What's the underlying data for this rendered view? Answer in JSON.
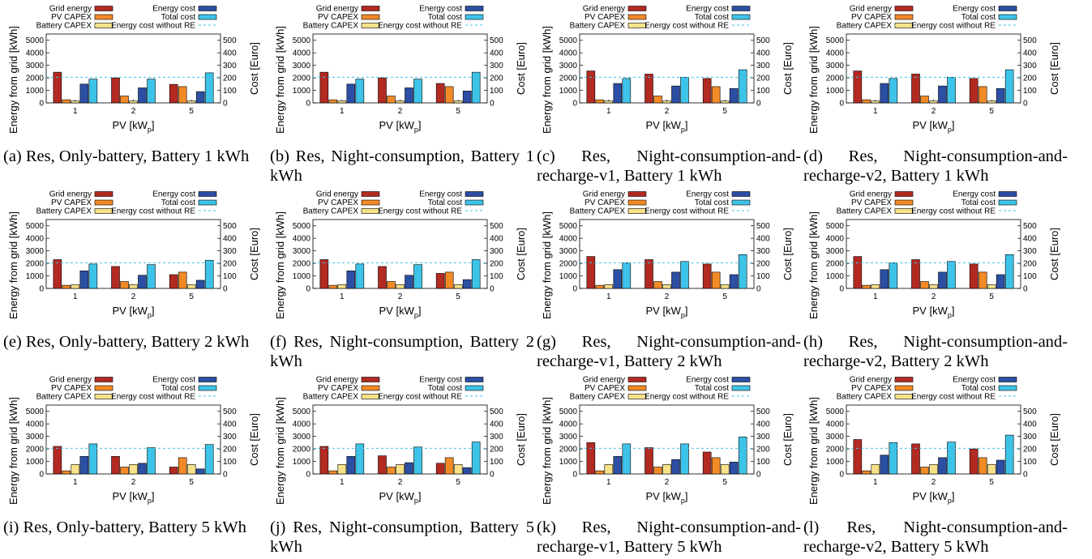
{
  "colors": {
    "grid_energy": "#b22a22",
    "pv_capex": "#f28a26",
    "battery_capex": "#f7e28a",
    "energy_cost": "#2c4fa4",
    "total_cost": "#3ec3e8",
    "baseline": "#3ec3e8"
  },
  "legend": {
    "grid_energy": "Grid energy",
    "pv_capex": "PV CAPEX",
    "battery_capex": "Battery CAPEX",
    "energy_cost": "Energy cost",
    "total_cost": "Total cost",
    "no_re": "Energy cost without RE"
  },
  "axes": {
    "ylabel_left": "Energy from grid [kWh]",
    "ylabel_right": "Cost [Euro]",
    "xlabel_main": "PV [kW",
    "xlabel_sub": "p",
    "xlabel_end": "]",
    "categories": [
      "1",
      "2",
      "5"
    ],
    "yticks_left": [
      "0",
      "1000",
      "2000",
      "3000",
      "4000",
      "5000"
    ],
    "yticks_right": [
      "0",
      "100",
      "200",
      "300",
      "400",
      "500"
    ],
    "ylim_left": [
      0,
      5500
    ],
    "ylim_right": [
      0,
      550
    ]
  },
  "captions": [
    "(a) Res, Only-battery, Battery 1 kWh",
    "(b) Res, Night-consumption, Battery 1 kWh",
    "(c) Res, Night-consumption-and-recharge-v1, Battery 1 kWh",
    "(d) Res, Night-consumption-and-recharge-v2, Battery 1 kWh",
    "(e) Res, Only-battery, Battery 2 kWh",
    "(f) Res, Night-consumption, Battery 2 kWh",
    "(g) Res, Night-consumption-and-recharge-v1, Battery 2 kWh",
    "(h) Res, Night-consumption-and-recharge-v2, Battery 2 kWh",
    "(i) Res, Only-battery, Battery 5 kWh",
    "(j) Res, Night-consumption, Battery 5 kWh",
    "(k) Res, Night-consumption-and-recharge-v1, Battery 5 kWh",
    "(l) Res, Night-consumption-and-recharge-v2, Battery 5 kWh"
  ],
  "chart_data": [
    {
      "type": "bar",
      "categories": [
        "1",
        "2",
        "5"
      ],
      "baseline_cost": 205,
      "series": [
        {
          "name": "Grid energy",
          "axis": "left",
          "values": [
            2450,
            2000,
            1480
          ]
        },
        {
          "name": "PV CAPEX",
          "axis": "right",
          "values": [
            25,
            55,
            130
          ]
        },
        {
          "name": "Battery CAPEX",
          "axis": "right",
          "values": [
            15,
            15,
            15
          ]
        },
        {
          "name": "Energy cost",
          "axis": "right",
          "values": [
            150,
            120,
            90
          ]
        },
        {
          "name": "Total cost",
          "axis": "right",
          "values": [
            190,
            190,
            240
          ]
        }
      ]
    },
    {
      "type": "bar",
      "categories": [
        "1",
        "2",
        "5"
      ],
      "baseline_cost": 205,
      "series": [
        {
          "name": "Grid energy",
          "axis": "left",
          "values": [
            2450,
            2000,
            1550
          ]
        },
        {
          "name": "PV CAPEX",
          "axis": "right",
          "values": [
            25,
            55,
            130
          ]
        },
        {
          "name": "Battery CAPEX",
          "axis": "right",
          "values": [
            15,
            15,
            15
          ]
        },
        {
          "name": "Energy cost",
          "axis": "right",
          "values": [
            150,
            120,
            95
          ]
        },
        {
          "name": "Total cost",
          "axis": "right",
          "values": [
            190,
            190,
            245
          ]
        }
      ]
    },
    {
      "type": "bar",
      "categories": [
        "1",
        "2",
        "5"
      ],
      "baseline_cost": 205,
      "series": [
        {
          "name": "Grid energy",
          "axis": "left",
          "values": [
            2550,
            2300,
            1950
          ]
        },
        {
          "name": "PV CAPEX",
          "axis": "right",
          "values": [
            25,
            55,
            130
          ]
        },
        {
          "name": "Battery CAPEX",
          "axis": "right",
          "values": [
            15,
            15,
            15
          ]
        },
        {
          "name": "Energy cost",
          "axis": "right",
          "values": [
            155,
            135,
            115
          ]
        },
        {
          "name": "Total cost",
          "axis": "right",
          "values": [
            195,
            205,
            265
          ]
        }
      ]
    },
    {
      "type": "bar",
      "categories": [
        "1",
        "2",
        "5"
      ],
      "baseline_cost": 205,
      "series": [
        {
          "name": "Grid energy",
          "axis": "left",
          "values": [
            2550,
            2300,
            1950
          ]
        },
        {
          "name": "PV CAPEX",
          "axis": "right",
          "values": [
            25,
            55,
            130
          ]
        },
        {
          "name": "Battery CAPEX",
          "axis": "right",
          "values": [
            15,
            15,
            15
          ]
        },
        {
          "name": "Energy cost",
          "axis": "right",
          "values": [
            155,
            135,
            115
          ]
        },
        {
          "name": "Total cost",
          "axis": "right",
          "values": [
            195,
            205,
            265
          ]
        }
      ]
    },
    {
      "type": "bar",
      "categories": [
        "1",
        "2",
        "5"
      ],
      "baseline_cost": 205,
      "series": [
        {
          "name": "Grid energy",
          "axis": "left",
          "values": [
            2300,
            1750,
            1100
          ]
        },
        {
          "name": "PV CAPEX",
          "axis": "right",
          "values": [
            25,
            55,
            130
          ]
        },
        {
          "name": "Battery CAPEX",
          "axis": "right",
          "values": [
            30,
            30,
            30
          ]
        },
        {
          "name": "Energy cost",
          "axis": "right",
          "values": [
            140,
            105,
            65
          ]
        },
        {
          "name": "Total cost",
          "axis": "right",
          "values": [
            195,
            190,
            225
          ]
        }
      ]
    },
    {
      "type": "bar",
      "categories": [
        "1",
        "2",
        "5"
      ],
      "baseline_cost": 205,
      "series": [
        {
          "name": "Grid energy",
          "axis": "left",
          "values": [
            2300,
            1750,
            1200
          ]
        },
        {
          "name": "PV CAPEX",
          "axis": "right",
          "values": [
            25,
            55,
            130
          ]
        },
        {
          "name": "Battery CAPEX",
          "axis": "right",
          "values": [
            30,
            30,
            30
          ]
        },
        {
          "name": "Energy cost",
          "axis": "right",
          "values": [
            140,
            105,
            70
          ]
        },
        {
          "name": "Total cost",
          "axis": "right",
          "values": [
            195,
            190,
            230
          ]
        }
      ]
    },
    {
      "type": "bar",
      "categories": [
        "1",
        "2",
        "5"
      ],
      "baseline_cost": 205,
      "series": [
        {
          "name": "Grid energy",
          "axis": "left",
          "values": [
            2550,
            2300,
            1950
          ]
        },
        {
          "name": "PV CAPEX",
          "axis": "right",
          "values": [
            25,
            55,
            130
          ]
        },
        {
          "name": "Battery CAPEX",
          "axis": "right",
          "values": [
            30,
            30,
            30
          ]
        },
        {
          "name": "Energy cost",
          "axis": "right",
          "values": [
            150,
            130,
            110
          ]
        },
        {
          "name": "Total cost",
          "axis": "right",
          "values": [
            205,
            215,
            270
          ]
        }
      ]
    },
    {
      "type": "bar",
      "categories": [
        "1",
        "2",
        "5"
      ],
      "baseline_cost": 205,
      "series": [
        {
          "name": "Grid energy",
          "axis": "left",
          "values": [
            2550,
            2300,
            1950
          ]
        },
        {
          "name": "PV CAPEX",
          "axis": "right",
          "values": [
            25,
            55,
            130
          ]
        },
        {
          "name": "Battery CAPEX",
          "axis": "right",
          "values": [
            30,
            30,
            30
          ]
        },
        {
          "name": "Energy cost",
          "axis": "right",
          "values": [
            150,
            130,
            110
          ]
        },
        {
          "name": "Total cost",
          "axis": "right",
          "values": [
            205,
            215,
            270
          ]
        }
      ]
    },
    {
      "type": "bar",
      "categories": [
        "1",
        "2",
        "5"
      ],
      "baseline_cost": 205,
      "series": [
        {
          "name": "Grid energy",
          "axis": "left",
          "values": [
            2200,
            1400,
            550
          ]
        },
        {
          "name": "PV CAPEX",
          "axis": "right",
          "values": [
            25,
            55,
            130
          ]
        },
        {
          "name": "Battery CAPEX",
          "axis": "right",
          "values": [
            75,
            75,
            75
          ]
        },
        {
          "name": "Energy cost",
          "axis": "right",
          "values": [
            140,
            85,
            40
          ]
        },
        {
          "name": "Total cost",
          "axis": "right",
          "values": [
            240,
            210,
            235
          ]
        }
      ]
    },
    {
      "type": "bar",
      "categories": [
        "1",
        "2",
        "5"
      ],
      "baseline_cost": 205,
      "series": [
        {
          "name": "Grid energy",
          "axis": "left",
          "values": [
            2200,
            1450,
            850
          ]
        },
        {
          "name": "PV CAPEX",
          "axis": "right",
          "values": [
            25,
            55,
            130
          ]
        },
        {
          "name": "Battery CAPEX",
          "axis": "right",
          "values": [
            75,
            75,
            75
          ]
        },
        {
          "name": "Energy cost",
          "axis": "right",
          "values": [
            140,
            90,
            50
          ]
        },
        {
          "name": "Total cost",
          "axis": "right",
          "values": [
            240,
            215,
            255
          ]
        }
      ]
    },
    {
      "type": "bar",
      "categories": [
        "1",
        "2",
        "5"
      ],
      "baseline_cost": 205,
      "series": [
        {
          "name": "Grid energy",
          "axis": "left",
          "values": [
            2500,
            2100,
            1750
          ]
        },
        {
          "name": "PV CAPEX",
          "axis": "right",
          "values": [
            25,
            55,
            130
          ]
        },
        {
          "name": "Battery CAPEX",
          "axis": "right",
          "values": [
            75,
            75,
            75
          ]
        },
        {
          "name": "Energy cost",
          "axis": "right",
          "values": [
            140,
            115,
            95
          ]
        },
        {
          "name": "Total cost",
          "axis": "right",
          "values": [
            240,
            240,
            295
          ]
        }
      ]
    },
    {
      "type": "bar",
      "categories": [
        "1",
        "2",
        "5"
      ],
      "baseline_cost": 205,
      "series": [
        {
          "name": "Grid energy",
          "axis": "left",
          "values": [
            2750,
            2400,
            2000
          ]
        },
        {
          "name": "PV CAPEX",
          "axis": "right",
          "values": [
            25,
            55,
            130
          ]
        },
        {
          "name": "Battery CAPEX",
          "axis": "right",
          "values": [
            75,
            75,
            75
          ]
        },
        {
          "name": "Energy cost",
          "axis": "right",
          "values": [
            150,
            130,
            110
          ]
        },
        {
          "name": "Total cost",
          "axis": "right",
          "values": [
            250,
            255,
            310
          ]
        }
      ]
    }
  ]
}
